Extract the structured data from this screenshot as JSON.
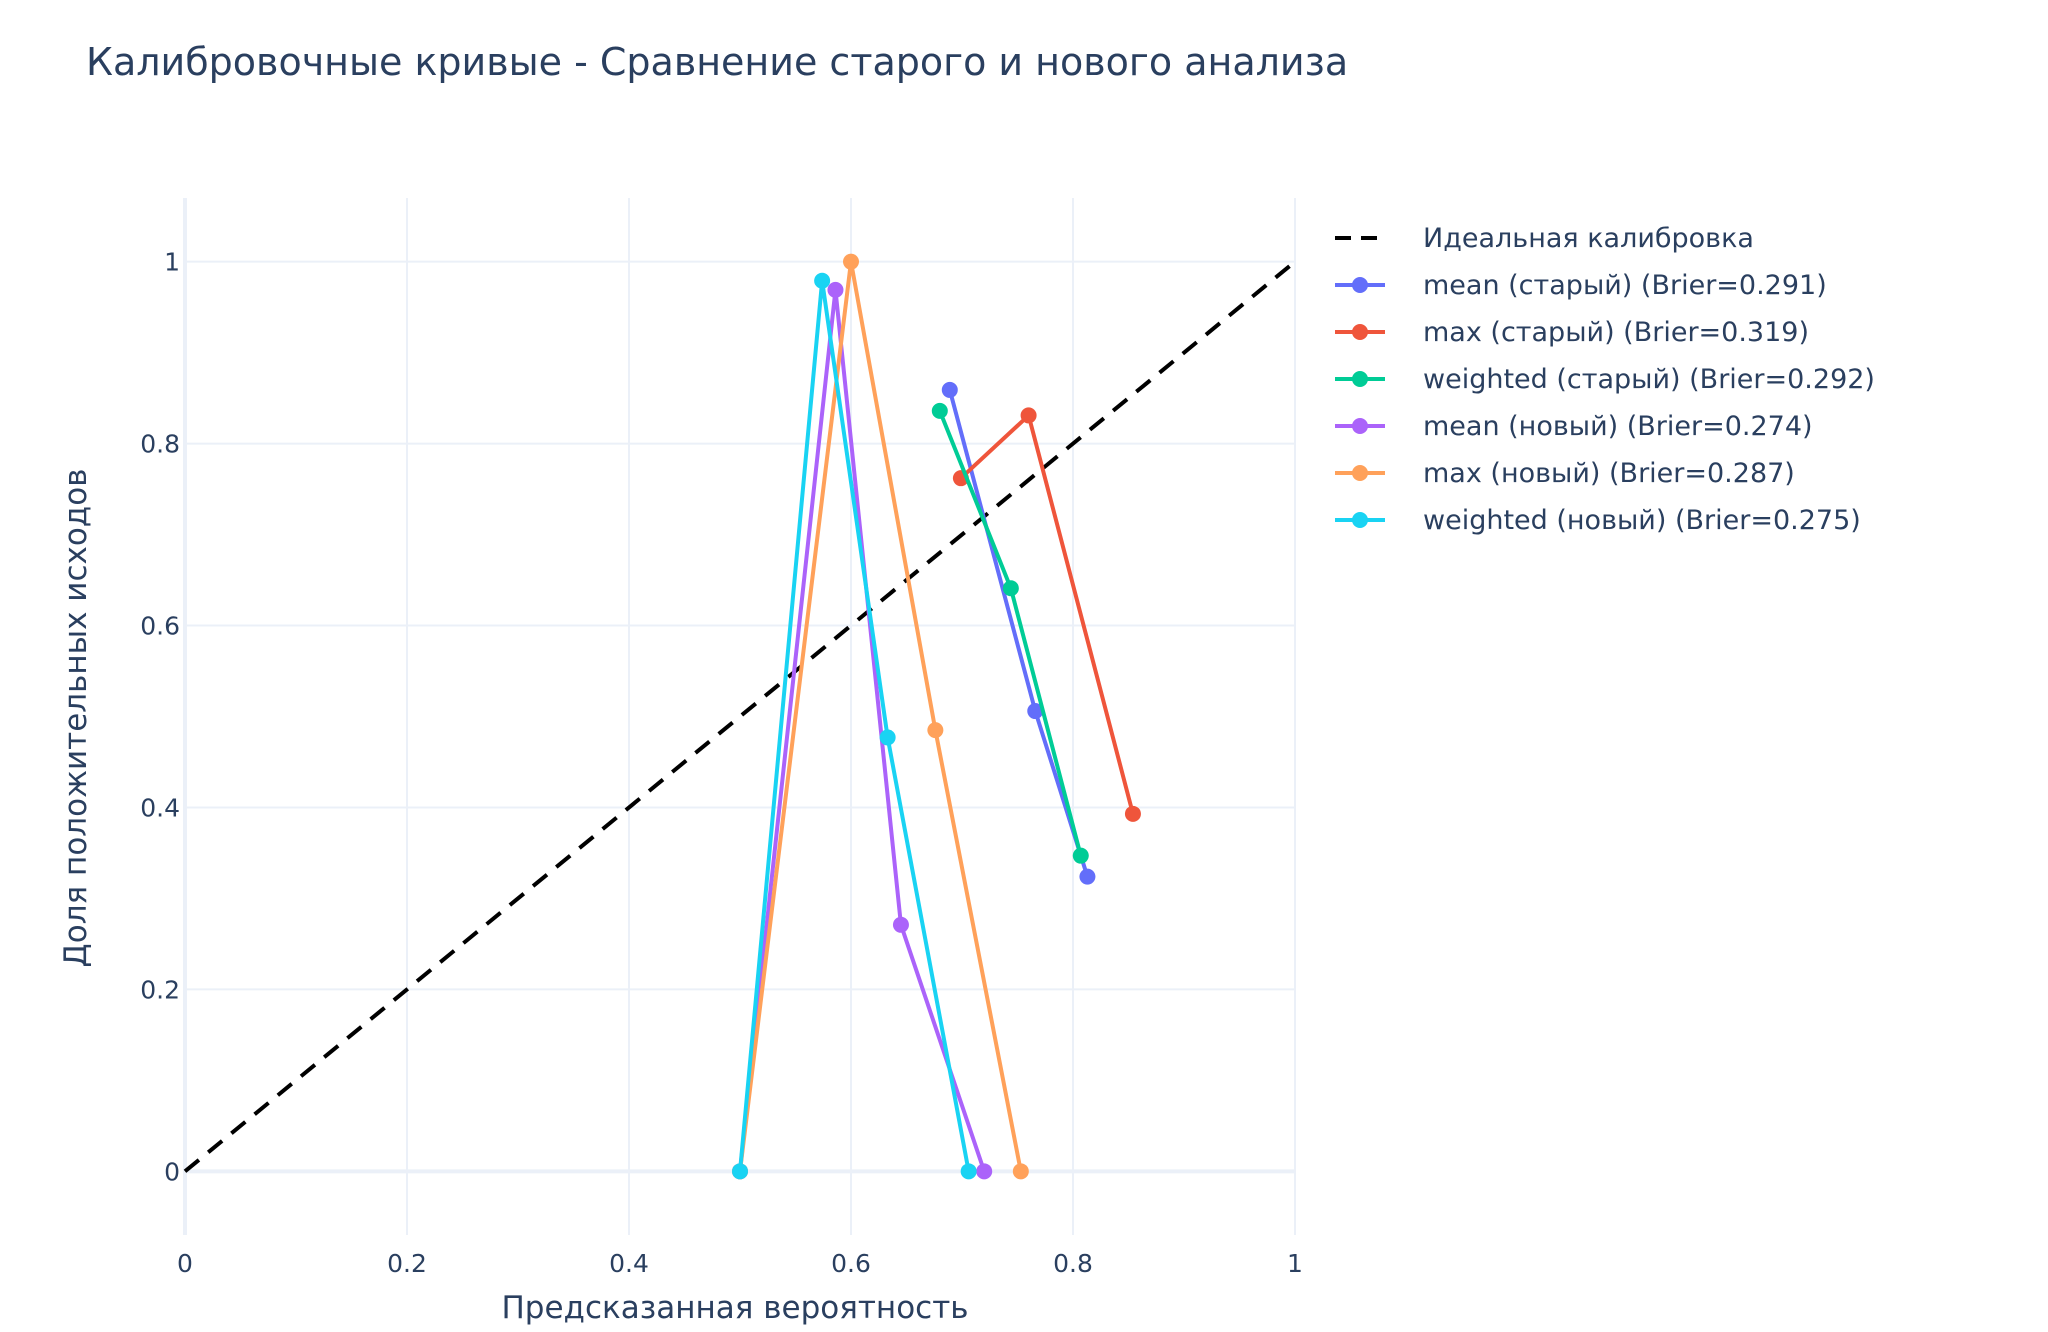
{
  "chart_data": {
    "type": "line",
    "title": "Калибровочные кривые - Сравнение старого и нового анализа",
    "xlabel": "Предсказанная вероятность",
    "ylabel": "Доля положительных исходов",
    "xlim": [
      0,
      1
    ],
    "ylim": [
      -0.07,
      1.07
    ],
    "x_ticks": [
      "0",
      "0.2",
      "0.4",
      "0.6",
      "0.8",
      "1"
    ],
    "y_ticks": [
      "0",
      "0.2",
      "0.4",
      "0.6",
      "0.8",
      "1"
    ],
    "grid": true,
    "legend_position": "right",
    "series": [
      {
        "name": "Идеальная калибровка",
        "color": "#000000",
        "dash": true,
        "markers": false,
        "x": [
          0,
          1
        ],
        "y": [
          0,
          1
        ]
      },
      {
        "name": "mean (старый) (Brier=0.291)",
        "color": "#636efa",
        "dash": false,
        "markers": true,
        "x": [
          0.689,
          0.766,
          0.813
        ],
        "y": [
          0.859,
          0.506,
          0.324
        ]
      },
      {
        "name": "max (старый) (Brier=0.319)",
        "color": "#ef553b",
        "dash": false,
        "markers": true,
        "x": [
          0.699,
          0.76,
          0.854
        ],
        "y": [
          0.762,
          0.831,
          0.393
        ]
      },
      {
        "name": "weighted (старый) (Brier=0.292)",
        "color": "#00cc96",
        "dash": false,
        "markers": true,
        "x": [
          0.68,
          0.744,
          0.807
        ],
        "y": [
          0.836,
          0.641,
          0.347
        ]
      },
      {
        "name": "mean (новый) (Brier=0.274)",
        "color": "#ab63fa",
        "dash": false,
        "markers": true,
        "x": [
          0.5,
          0.586,
          0.645,
          0.72
        ],
        "y": [
          0,
          0.969,
          0.271,
          0
        ]
      },
      {
        "name": "max (новый) (Brier=0.287)",
        "color": "#ffa15a",
        "dash": false,
        "markers": true,
        "x": [
          0.5,
          0.6,
          0.676,
          0.753
        ],
        "y": [
          0,
          1,
          0.485,
          0
        ]
      },
      {
        "name": "weighted (новый) (Brier=0.275)",
        "color": "#19d3f3",
        "dash": false,
        "markers": true,
        "x": [
          0.5,
          0.574,
          0.633,
          0.706
        ],
        "y": [
          0,
          0.979,
          0.477,
          0
        ]
      }
    ]
  }
}
